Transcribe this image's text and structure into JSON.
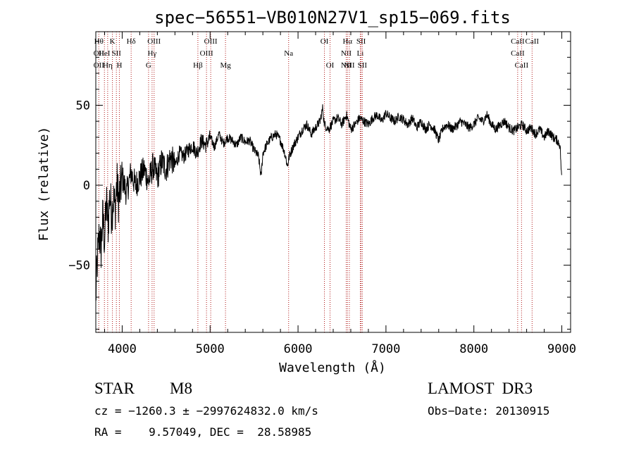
{
  "chart_data": {
    "type": "line",
    "title": "spec−56551−VB010N27V1_sp15−069.fits",
    "xlabel": "Wavelength (Å)",
    "ylabel": "Flux (relative)",
    "xlim": [
      3700,
      9100
    ],
    "ylim": [
      -92,
      96
    ],
    "x_ticks": [
      4000,
      5000,
      6000,
      7000,
      8000,
      9000
    ],
    "y_ticks": [
      {
        "value": 50,
        "label": "50"
      },
      {
        "value": 0,
        "label": "0"
      },
      {
        "value": -50,
        "label": "−50"
      }
    ],
    "series": [
      {
        "name": "flux",
        "color": "#000000",
        "x": [
          3700,
          3720,
          3740,
          3760,
          3780,
          3800,
          3820,
          3840,
          3860,
          3880,
          3900,
          3920,
          3940,
          3960,
          3980,
          4000,
          4050,
          4100,
          4150,
          4200,
          4250,
          4300,
          4350,
          4400,
          4450,
          4500,
          4550,
          4600,
          4650,
          4700,
          4750,
          4800,
          4850,
          4900,
          4950,
          5000,
          5050,
          5100,
          5150,
          5200,
          5250,
          5300,
          5350,
          5400,
          5450,
          5500,
          5550,
          5580,
          5600,
          5650,
          5700,
          5750,
          5800,
          5850,
          5880,
          5900,
          5950,
          6000,
          6050,
          6100,
          6150,
          6200,
          6250,
          6280,
          6300,
          6350,
          6400,
          6450,
          6500,
          6550,
          6600,
          6650,
          6700,
          6750,
          6800,
          6850,
          6900,
          6950,
          7000,
          7050,
          7100,
          7150,
          7200,
          7250,
          7300,
          7350,
          7400,
          7450,
          7500,
          7550,
          7600,
          7650,
          7700,
          7750,
          7800,
          7850,
          7900,
          7950,
          8000,
          8050,
          8100,
          8150,
          8200,
          8250,
          8300,
          8350,
          8400,
          8450,
          8500,
          8550,
          8600,
          8650,
          8700,
          8750,
          8800,
          8850,
          8900,
          8950,
          8980,
          9000
        ],
        "values": [
          -70,
          -45,
          -30,
          -40,
          -20,
          -35,
          -10,
          -25,
          -5,
          -18,
          -8,
          -15,
          2,
          -10,
          -3,
          5,
          -5,
          8,
          0,
          5,
          10,
          2,
          12,
          5,
          15,
          10,
          18,
          12,
          20,
          18,
          22,
          25,
          20,
          28,
          25,
          30,
          24,
          32,
          26,
          30,
          28,
          25,
          30,
          27,
          28,
          22,
          18,
          5,
          20,
          26,
          30,
          32,
          28,
          20,
          12,
          18,
          25,
          30,
          35,
          38,
          32,
          36,
          40,
          48,
          38,
          35,
          40,
          42,
          38,
          44,
          35,
          38,
          42,
          40,
          38,
          42,
          44,
          40,
          45,
          42,
          40,
          43,
          41,
          38,
          42,
          36,
          40,
          35,
          38,
          35,
          28,
          36,
          38,
          35,
          37,
          40,
          38,
          36,
          38,
          42,
          40,
          44,
          38,
          35,
          38,
          40,
          36,
          34,
          36,
          38,
          34,
          36,
          32,
          35,
          30,
          34,
          30,
          28,
          25,
          2
        ]
      }
    ],
    "lines": [
      {
        "wl": 3734,
        "top": "Hθ",
        "mid": "OII",
        "bot": "OII"
      },
      {
        "wl": 3798,
        "mid": "HeI"
      },
      {
        "wl": 3835,
        "bot": "Hη"
      },
      {
        "wl": 3889,
        "top": "K"
      },
      {
        "wl": 3934,
        "mid": "SII"
      },
      {
        "wl": 3968,
        "bot": "H"
      },
      {
        "wl": 4102,
        "top": "Hδ"
      },
      {
        "wl": 4300,
        "bot": "G"
      },
      {
        "wl": 4340,
        "mid": "Hγ"
      },
      {
        "wl": 4363,
        "top": "OIII"
      },
      {
        "wl": 4861,
        "bot": "Hβ"
      },
      {
        "wl": 4959,
        "mid": "OIII"
      },
      {
        "wl": 5007,
        "top": "OIII"
      },
      {
        "wl": 5175,
        "bot": "Mg"
      },
      {
        "wl": 5893,
        "mid": "Na"
      },
      {
        "wl": 6300,
        "top": "OI"
      },
      {
        "wl": 6364,
        "bot": "OI"
      },
      {
        "wl": 6548,
        "mid": "NII",
        "bot": "NII"
      },
      {
        "wl": 6563,
        "top": "Hα"
      },
      {
        "wl": 6584,
        "bot": "NII"
      },
      {
        "wl": 6708,
        "mid": "Li"
      },
      {
        "wl": 6717,
        "top": "SII"
      },
      {
        "wl": 6731,
        "bot": "SII"
      },
      {
        "wl": 8498,
        "top": "CaII",
        "mid": "CaII"
      },
      {
        "wl": 8542,
        "bot": "CaII"
      },
      {
        "wl": 8662,
        "top": "CaII"
      }
    ]
  },
  "info": {
    "object_type": "STAR",
    "subclass": "M8",
    "survey": "LAMOST  DR3",
    "cz_line": "cz = −1260.3 ± −2997624832.0 km/s",
    "obs_date_line": "Obs−Date: 20130915",
    "radec_line": "RA =    9.57049, DEC =  28.58985"
  }
}
